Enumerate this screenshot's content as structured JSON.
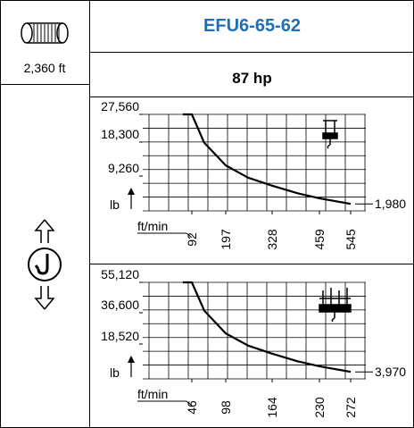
{
  "header": {
    "model": "EFU6-65-62",
    "power": "87 hp",
    "rope_length": "2,360 ft",
    "drum_icon": "rope-drum-icon",
    "hook_icon": "hook-up-down-icon",
    "title_color": "#1e6fb8"
  },
  "chart_data": [
    {
      "type": "line",
      "name": "single-fall",
      "reeving_icon": "single-hook-icon",
      "x_unit": "ft/min",
      "y_unit": "lb",
      "x_ticks": [
        "92",
        "197",
        "328",
        "459",
        "545"
      ],
      "y_ticks": [
        "27,560",
        "18,300",
        "9,260"
      ],
      "end_label": "1,980",
      "x": [
        0,
        92,
        130,
        197,
        260,
        328,
        400,
        459,
        545
      ],
      "y": [
        27560,
        27560,
        19500,
        13000,
        9500,
        7200,
        5000,
        3600,
        1980
      ],
      "xlim": [
        0,
        545
      ],
      "ylim": [
        0,
        27560
      ],
      "grid": true
    },
    {
      "type": "line",
      "name": "double-fall",
      "reeving_icon": "double-hook-icon",
      "x_unit": "ft/min",
      "y_unit": "lb",
      "x_ticks": [
        "46",
        "98",
        "164",
        "230",
        "272"
      ],
      "y_ticks": [
        "55,120",
        "36,600",
        "18,520"
      ],
      "end_label": "3,970",
      "x": [
        0,
        46,
        65,
        98,
        130,
        164,
        200,
        230,
        272
      ],
      "y": [
        55120,
        55120,
        39000,
        26000,
        19000,
        14400,
        10000,
        7200,
        3970
      ],
      "xlim": [
        0,
        272
      ],
      "ylim": [
        0,
        55120
      ],
      "grid": true
    }
  ]
}
